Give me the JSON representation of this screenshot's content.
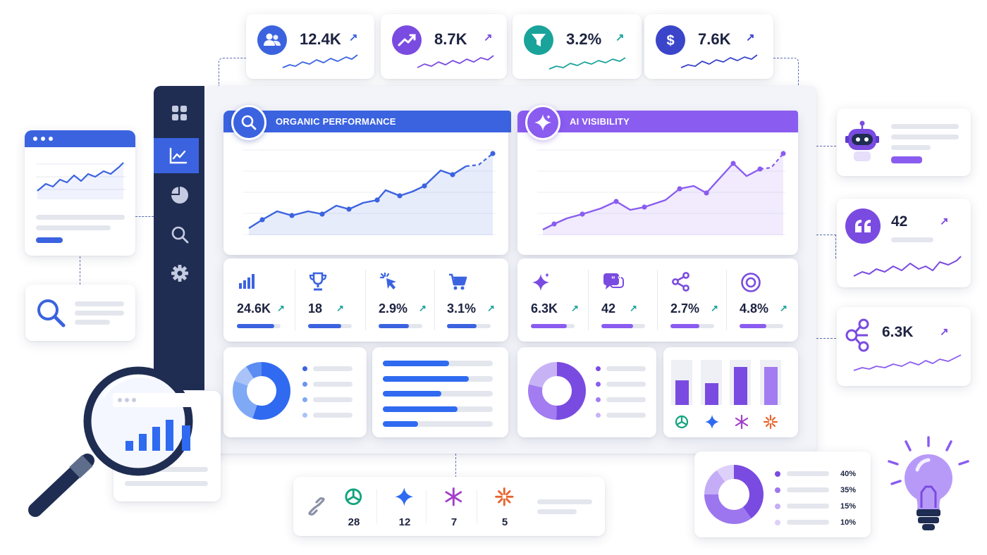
{
  "kpis": [
    {
      "value": "12.4K",
      "icon": "users-icon",
      "color": "#3b63e0"
    },
    {
      "value": "8.7K",
      "icon": "trend-up-icon",
      "color": "#7a4be0"
    },
    {
      "value": "3.2%",
      "icon": "funnel-icon",
      "color": "#1aa39a"
    },
    {
      "value": "7.6K",
      "icon": "dollar-icon",
      "color": "#3a45c9"
    }
  ],
  "organic": {
    "title": "ORGANIC PERFORMANCE",
    "metrics": [
      {
        "value": "24.6K",
        "icon": "bar-chart-icon",
        "progress": 0.85
      },
      {
        "value": "18",
        "icon": "trophy-icon",
        "progress": 0.75
      },
      {
        "value": "2.9%",
        "icon": "cursor-icon",
        "progress": 0.7
      },
      {
        "value": "3.1%",
        "icon": "cart-icon",
        "progress": 0.68
      }
    ],
    "hbars": [
      0.6,
      0.78,
      0.53,
      0.68,
      0.32
    ]
  },
  "ai": {
    "title": "AI VISIBILITY",
    "metrics": [
      {
        "value": "6.3K",
        "icon": "sparkle-icon",
        "progress": 0.82
      },
      {
        "value": "42",
        "icon": "chat-icon",
        "progress": 0.72
      },
      {
        "value": "2.7%",
        "icon": "share-icon",
        "progress": 0.66
      },
      {
        "value": "4.8%",
        "icon": "target-icon",
        "progress": 0.62
      }
    ],
    "vbars": [
      0.55,
      0.48,
      0.85,
      0.85
    ]
  },
  "right_cards": [
    {
      "value": "42",
      "icon": "quote-icon"
    },
    {
      "value": "6.3K",
      "icon": "network-icon"
    }
  ],
  "citations": [
    {
      "value": "28",
      "icon": "openai-icon"
    },
    {
      "value": "12",
      "icon": "gemini-icon"
    },
    {
      "value": "7",
      "icon": "perplexity-icon"
    },
    {
      "value": "5",
      "icon": "claude-icon"
    }
  ],
  "donut_legend": [
    "40%",
    "35%",
    "15%",
    "10%"
  ],
  "colors": {
    "blue": "#3b63e0",
    "purple": "#8a5cf0",
    "navy": "#1f2d52",
    "teal": "#1aa39a"
  }
}
